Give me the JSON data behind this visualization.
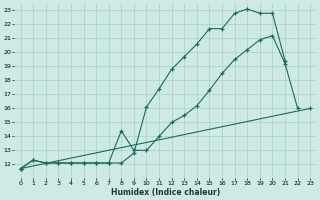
{
  "xlabel": "Humidex (Indice chaleur)",
  "xlim": [
    -0.5,
    23.5
  ],
  "ylim": [
    11,
    23.5
  ],
  "xticks": [
    0,
    1,
    2,
    3,
    4,
    5,
    6,
    7,
    8,
    9,
    10,
    11,
    12,
    13,
    14,
    15,
    16,
    17,
    18,
    19,
    20,
    21,
    22,
    23
  ],
  "yticks": [
    12,
    13,
    14,
    15,
    16,
    17,
    18,
    19,
    20,
    21,
    22,
    23
  ],
  "bg_color": "#ceeae6",
  "grid_color": "#aacfca",
  "line_color": "#1a6b5a",
  "line1_x": [
    0,
    1,
    2,
    3,
    4,
    5,
    6,
    7,
    8,
    9,
    10,
    11,
    12,
    13,
    14,
    15,
    16,
    17,
    18,
    19,
    20,
    21,
    22,
    23
  ],
  "line1_y": [
    11.7,
    12.3,
    12.1,
    12.1,
    12.1,
    12.1,
    12.1,
    12.1,
    12.1,
    12.8,
    16.1,
    17.4,
    18.8,
    19.7,
    20.6,
    21.7,
    21.7,
    22.8,
    23.1,
    22.8,
    22.8,
    19.4,
    null,
    null
  ],
  "line2_x": [
    0,
    1,
    2,
    3,
    4,
    5,
    6,
    7,
    8,
    9,
    10,
    11,
    12,
    13,
    14,
    15,
    16,
    17,
    18,
    19,
    20,
    21,
    22,
    23
  ],
  "line2_y": [
    11.7,
    12.3,
    12.1,
    12.1,
    12.1,
    12.1,
    12.1,
    12.1,
    14.4,
    13.0,
    13.0,
    14.0,
    15.0,
    15.5,
    16.2,
    17.3,
    18.5,
    19.5,
    20.2,
    20.9,
    21.2,
    19.2,
    16.0,
    null
  ],
  "line3_x": [
    0,
    23
  ],
  "line3_y": [
    11.7,
    16.0
  ]
}
